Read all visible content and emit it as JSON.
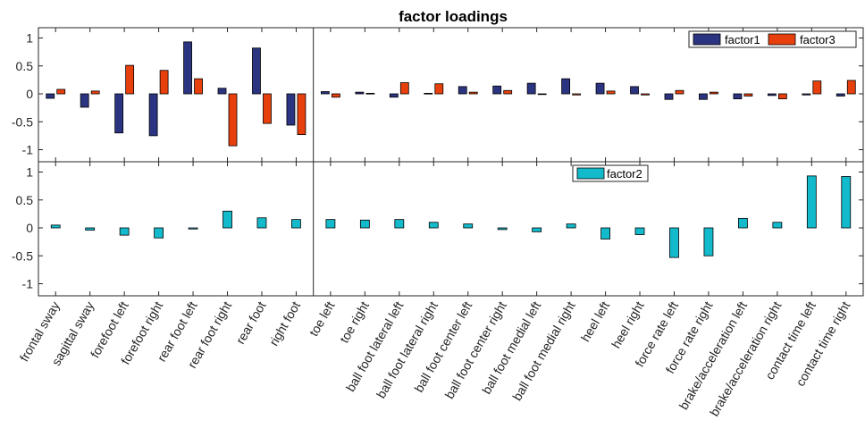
{
  "chart_data": {
    "type": "bar",
    "title": "factor loadings",
    "categories": [
      "frontal sway",
      "sagittal sway",
      "forefoot left",
      "forefoot right",
      "rear foot left",
      "rear foot right",
      "rear foot",
      "right foot",
      "toe left",
      "toe right",
      "ball foot lateral left",
      "ball foot lateral right",
      "ball foot center left",
      "ball foot center right",
      "ball foot medial left",
      "ball foot medial right",
      "heel left",
      "heel right",
      "force rate left",
      "force rate right",
      "brake/acceleration left",
      "brake/acceleration right",
      "contact time left",
      "contact time right"
    ],
    "ylim": [
      -1.2,
      1.2
    ],
    "yticks": [
      -1,
      -0.5,
      0,
      0.5,
      1
    ],
    "ytick_labels": [
      "-1",
      "-0.5",
      "0",
      "0.5",
      "1"
    ],
    "grid": false,
    "panels": [
      {
        "name": "top",
        "legend_position": "top-right",
        "series": [
          {
            "name": "factor1",
            "color": "#2b3480",
            "values": [
              -0.08,
              -0.24,
              -0.7,
              -0.75,
              0.93,
              0.1,
              0.82,
              -0.56,
              0.04,
              0.03,
              -0.06,
              0.01,
              0.13,
              0.14,
              0.19,
              0.27,
              0.19,
              0.13,
              -0.1,
              -0.1,
              -0.09,
              -0.03,
              -0.02,
              -0.04
            ]
          },
          {
            "name": "factor3",
            "color": "#e8400c",
            "values": [
              0.08,
              0.05,
              0.51,
              0.42,
              0.27,
              -0.93,
              -0.53,
              -0.73,
              -0.06,
              0.01,
              0.2,
              0.18,
              0.03,
              0.06,
              -0.01,
              -0.02,
              0.05,
              -0.02,
              0.06,
              0.03,
              -0.04,
              -0.09,
              0.23,
              0.24
            ]
          }
        ]
      },
      {
        "name": "bottom",
        "legend_position": "top-center",
        "series": [
          {
            "name": "factor2",
            "color": "#13bacc",
            "values": [
              0.05,
              -0.04,
              -0.13,
              -0.18,
              -0.02,
              0.3,
              0.18,
              0.15,
              0.15,
              0.14,
              0.15,
              0.1,
              0.07,
              -0.03,
              -0.07,
              0.07,
              -0.2,
              -0.12,
              -0.53,
              -0.5,
              0.17,
              0.1,
              0.93,
              0.92
            ]
          }
        ]
      }
    ],
    "divider_after_category": "right foot"
  }
}
